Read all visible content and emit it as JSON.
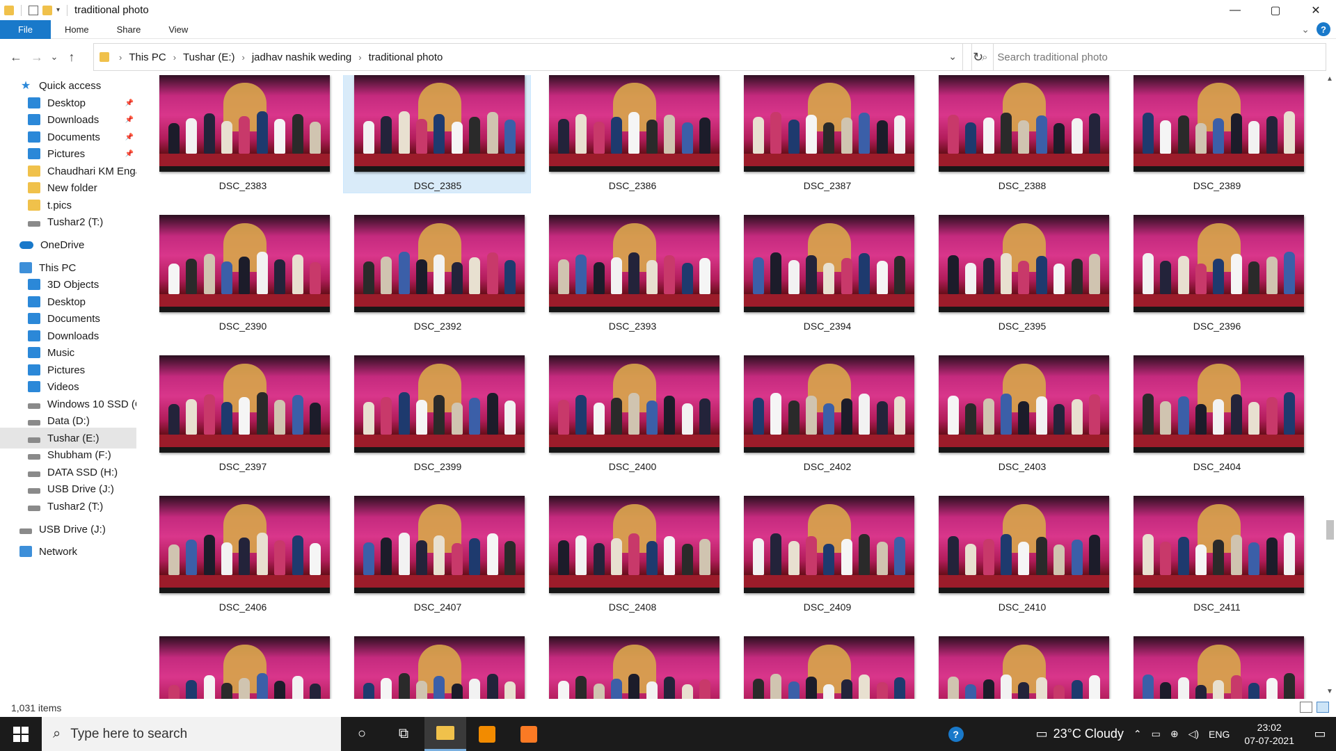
{
  "window": {
    "title": "traditional photo",
    "controls": {
      "minimize": "—",
      "maximize": "▢",
      "close": "✕"
    }
  },
  "ribbon": {
    "tabs": [
      "File",
      "Home",
      "Share",
      "View"
    ],
    "help": "?",
    "collapse": "⌄"
  },
  "nav_buttons": {
    "back": "←",
    "forward": "→",
    "recent": "⌄",
    "up": "↑",
    "refresh": "↻",
    "dropdown": "⌄"
  },
  "breadcrumb": [
    "This PC",
    "Tushar (E:)",
    "jadhav nashik weding",
    "traditional photo"
  ],
  "search": {
    "placeholder": "Search traditional photo"
  },
  "nav_pane": [
    {
      "label": "Quick access",
      "icon": "star-icon",
      "pinned": false
    },
    {
      "label": "Desktop",
      "icon": "desktop-icon",
      "pinned": true
    },
    {
      "label": "Downloads",
      "icon": "downloads-icon",
      "pinned": true
    },
    {
      "label": "Documents",
      "icon": "documents-icon",
      "pinned": true
    },
    {
      "label": "Pictures",
      "icon": "pictures-icon",
      "pinned": true
    },
    {
      "label": "Chaudhari KM Enga",
      "icon": "folder-icon",
      "pinned": false
    },
    {
      "label": "New folder",
      "icon": "folder-icon",
      "pinned": false
    },
    {
      "label": "t.pics",
      "icon": "folder-icon",
      "pinned": false
    },
    {
      "label": "Tushar2 (T:)",
      "icon": "drive-icon",
      "pinned": false
    },
    {
      "label": "OneDrive",
      "icon": "onedrive-icon",
      "pinned": false
    },
    {
      "label": "This PC",
      "icon": "this-pc-icon",
      "pinned": false
    },
    {
      "label": "3D Objects",
      "icon": "3d-objects-icon",
      "pinned": false
    },
    {
      "label": "Desktop",
      "icon": "desktop-icon",
      "pinned": false
    },
    {
      "label": "Documents",
      "icon": "documents-icon",
      "pinned": false
    },
    {
      "label": "Downloads",
      "icon": "downloads-icon",
      "pinned": false
    },
    {
      "label": "Music",
      "icon": "music-icon",
      "pinned": false
    },
    {
      "label": "Pictures",
      "icon": "pictures-icon",
      "pinned": false
    },
    {
      "label": "Videos",
      "icon": "videos-icon",
      "pinned": false
    },
    {
      "label": "Windows 10 SSD (C",
      "icon": "windows-drive-icon",
      "pinned": false
    },
    {
      "label": "Data (D:)",
      "icon": "drive-icon",
      "pinned": false
    },
    {
      "label": "Tushar (E:)",
      "icon": "drive-icon",
      "pinned": false,
      "selected": true
    },
    {
      "label": "Shubham (F:)",
      "icon": "drive-icon",
      "pinned": false
    },
    {
      "label": "DATA SSD (H:)",
      "icon": "drive-icon",
      "pinned": false
    },
    {
      "label": "USB Drive (J:)",
      "icon": "drive-icon",
      "pinned": false
    },
    {
      "label": "Tushar2 (T:)",
      "icon": "drive-icon",
      "pinned": false
    },
    {
      "label": "USB Drive (J:)",
      "icon": "usb-drive-icon",
      "pinned": false
    },
    {
      "label": "Network",
      "icon": "network-icon",
      "pinned": false
    }
  ],
  "files": [
    "DSC_2383",
    "DSC_2385",
    "DSC_2386",
    "DSC_2387",
    "DSC_2388",
    "DSC_2389",
    "DSC_2390",
    "DSC_2392",
    "DSC_2393",
    "DSC_2394",
    "DSC_2395",
    "DSC_2396",
    "DSC_2397",
    "DSC_2399",
    "DSC_2400",
    "DSC_2402",
    "DSC_2403",
    "DSC_2404",
    "DSC_2406",
    "DSC_2407",
    "DSC_2408",
    "DSC_2409",
    "DSC_2410",
    "DSC_2411",
    "",
    "",
    "",
    "",
    "",
    ""
  ],
  "selected_file": "DSC_2385",
  "status": {
    "item_count": "1,031 items"
  },
  "taskbar": {
    "search_placeholder": "Type here to search",
    "weather": "23°C  Cloudy",
    "language": "ENG",
    "time": "23:02",
    "date": "07-07-2021"
  },
  "colors": {
    "accent": "#1979ca",
    "selection": "#cce8ff",
    "taskbar": "#1b1b1b"
  }
}
